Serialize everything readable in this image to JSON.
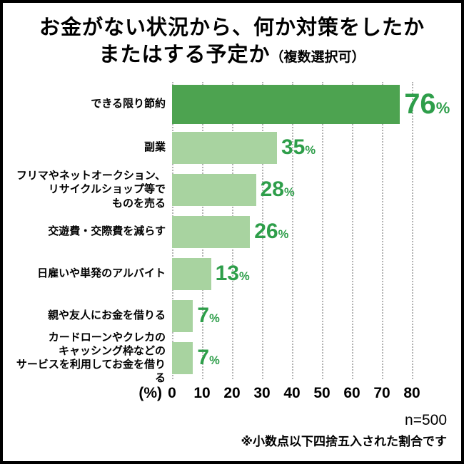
{
  "title": {
    "line1": "お金がない状況から、何か対策をしたか",
    "line2": "またはする予定か",
    "suffix": "（複数選択可）"
  },
  "chart_data": {
    "type": "bar",
    "orientation": "horizontal",
    "title": "お金がない状況から、何か対策をしたかまたはする予定か（複数選択可）",
    "categories": [
      [
        "できる限り節約"
      ],
      [
        "副業"
      ],
      [
        "フリマやネットオークション、",
        "リサイクルショップ等で",
        "ものを売る"
      ],
      [
        "交遊費・交際費を減らす"
      ],
      [
        "日雇いや単発のアルバイト"
      ],
      [
        "親や友人にお金を借りる"
      ],
      [
        "カードローンやクレカの",
        "キャッシング枠などの",
        "サービスを利用してお金を借りる"
      ]
    ],
    "values": [
      76,
      35,
      28,
      26,
      13,
      7,
      7
    ],
    "value_suffix": "%",
    "xlim": [
      0,
      80
    ],
    "xticks": [
      0,
      10,
      20,
      30,
      40,
      50,
      60,
      70,
      80
    ],
    "x_unit_label": "(%)",
    "grid": "dotted-vertical",
    "legend": "none",
    "highlight_index": 0
  },
  "colors": {
    "bar_primary": "#4da350",
    "bar_secondary": "#a8d3a0",
    "value_text": "#2e9e4a",
    "grid": "#b3b3b3",
    "frame_border": "#000000"
  },
  "footer": {
    "sample_size": "n=500",
    "note": "※小数点以下四捨五入された割合です"
  }
}
